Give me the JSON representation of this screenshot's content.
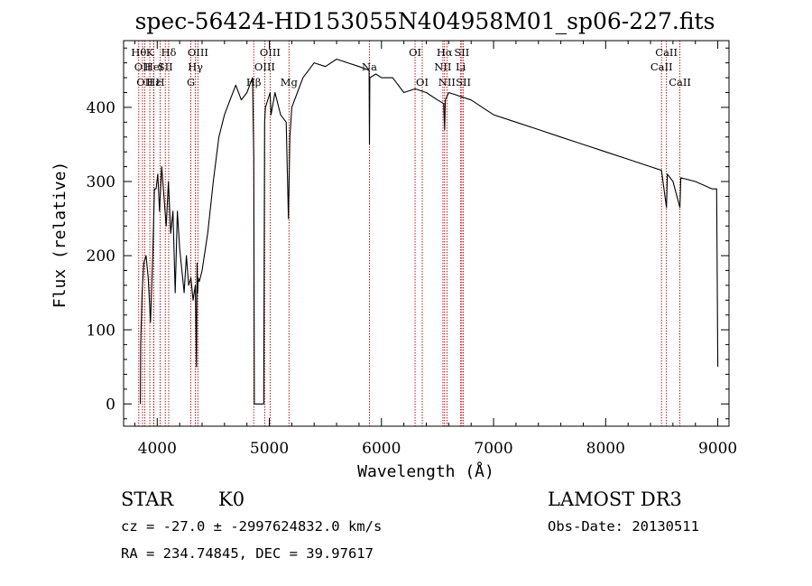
{
  "chart_data": {
    "type": "line",
    "title": "spec-56424-HD153055N404958M01_sp06-227.fits",
    "xlabel": "Wavelength (Å)",
    "ylabel": "Flux (relative)",
    "xlim": [
      3700,
      9100
    ],
    "ylim": [
      -30,
      490
    ],
    "xticks": [
      4000,
      5000,
      6000,
      7000,
      8000,
      9000
    ],
    "yticks": [
      0,
      100,
      200,
      300,
      400
    ],
    "series": [
      {
        "x": [
          3700,
          3850,
          3852,
          3865,
          3880,
          3900,
          3920,
          3940,
          3960,
          3975,
          3990,
          4005,
          4020,
          4040,
          4060,
          4080,
          4100,
          4120,
          4140,
          4160,
          4180,
          4200,
          4220,
          4240,
          4260,
          4280,
          4300,
          4320,
          4340,
          4350,
          4355,
          4360,
          4365,
          4375,
          4400,
          4450,
          4500,
          4550,
          4600,
          4650,
          4700,
          4750,
          4800,
          4850,
          4861,
          4866,
          4868,
          4880,
          4950,
          4958,
          4965,
          5007,
          5015,
          5050,
          5100,
          5150,
          5170,
          5183,
          5200,
          5250,
          5300,
          5400,
          5500,
          5600,
          5700,
          5800,
          5890,
          5893,
          5896,
          5950,
          6000,
          6100,
          6200,
          6300,
          6400,
          6500,
          6555,
          6563,
          6570,
          6600,
          6700,
          6800,
          6900,
          7000,
          7200,
          7400,
          7600,
          7800,
          8000,
          8200,
          8400,
          8498,
          8542,
          8550,
          8600,
          8662,
          8670,
          8800,
          8950,
          8990,
          9000
        ],
        "values": [
          null,
          0,
          80,
          150,
          190,
          200,
          170,
          110,
          200,
          290,
          290,
          310,
          260,
          320,
          280,
          240,
          300,
          230,
          260,
          150,
          260,
          210,
          180,
          150,
          200,
          160,
          170,
          140,
          160,
          50,
          190,
          150,
          170,
          165,
          180,
          230,
          300,
          360,
          390,
          410,
          430,
          410,
          420,
          440,
          330,
          0,
          0,
          0,
          0,
          380,
          400,
          420,
          390,
          420,
          390,
          380,
          250,
          360,
          400,
          420,
          440,
          460,
          455,
          465,
          460,
          455,
          450,
          350,
          440,
          445,
          440,
          440,
          420,
          425,
          420,
          410,
          405,
          370,
          410,
          420,
          415,
          410,
          400,
          390,
          380,
          370,
          360,
          350,
          340,
          330,
          320,
          315,
          265,
          310,
          300,
          265,
          305,
          300,
          290,
          290,
          50
        ]
      }
    ],
    "lines": [
      {
        "wave": 3835,
        "label": "Hθ",
        "row": 1
      },
      {
        "wave": 3869,
        "label": "OII",
        "row": 2
      },
      {
        "wave": 3889,
        "label": "OII",
        "row": 3
      },
      {
        "wave": 3934,
        "label": "K",
        "row": 1
      },
      {
        "wave": 3968,
        "label": "Hε",
        "row": 3
      },
      {
        "wave": 3970,
        "label": "HeI",
        "row": 2
      },
      {
        "wave": 4026,
        "label": "H",
        "row": 3
      },
      {
        "wave": 4072,
        "label": "SII",
        "row": 2
      },
      {
        "wave": 4102,
        "label": "Hδ",
        "row": 1
      },
      {
        "wave": 4300,
        "label": "G",
        "row": 3
      },
      {
        "wave": 4340,
        "label": "Hγ",
        "row": 2
      },
      {
        "wave": 4363,
        "label": "OIII",
        "row": 1
      },
      {
        "wave": 4861,
        "label": "Hβ",
        "row": 3
      },
      {
        "wave": 4959,
        "label": "OIII",
        "row": 2
      },
      {
        "wave": 5007,
        "label": "OIII",
        "row": 1
      },
      {
        "wave": 5175,
        "label": "Mg",
        "row": 3
      },
      {
        "wave": 5893,
        "label": "Na",
        "row": 2
      },
      {
        "wave": 6300,
        "label": "OI",
        "row": 1
      },
      {
        "wave": 6364,
        "label": "OI",
        "row": 3
      },
      {
        "wave": 6548,
        "label": "NII",
        "row": 2
      },
      {
        "wave": 6563,
        "label": "Hα",
        "row": 1
      },
      {
        "wave": 6584,
        "label": "NII",
        "row": 3
      },
      {
        "wave": 6707,
        "label": "Li",
        "row": 2
      },
      {
        "wave": 6717,
        "label": "SII",
        "row": 1
      },
      {
        "wave": 6731,
        "label": "SII",
        "row": 3
      },
      {
        "wave": 8498,
        "label": "CaII",
        "row": 2
      },
      {
        "wave": 8542,
        "label": "CaII",
        "row": 1
      },
      {
        "wave": 8662,
        "label": "CaII",
        "row": 3
      }
    ]
  },
  "info": {
    "class": "STAR",
    "subclass": "K0",
    "survey": "LAMOST DR3",
    "cz": "cz = -27.0 ± -2997624832.0 km/s",
    "obsdate": "Obs-Date: 20130511",
    "radec": "RA = 234.74845, DEC =  39.97617"
  },
  "colors": {
    "line_markers": "#b00000",
    "spectrum": "#000000"
  }
}
